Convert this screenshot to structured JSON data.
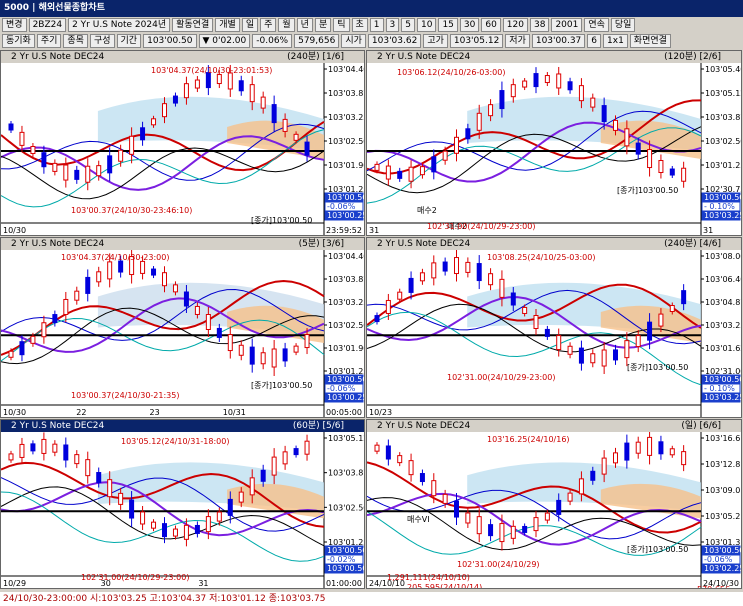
{
  "window": {
    "title": "5000 | 해외선물종합차트"
  },
  "toolbar": {
    "row1": [
      "변경",
      "2BZ24",
      "2 Yr U.S Note 2024년",
      "활동연결",
      "개별",
      "일",
      "주",
      "월",
      "년",
      "분",
      "틱",
      "초",
      "1",
      "3",
      "5",
      "10",
      "15",
      "30",
      "60",
      "120",
      "38",
      "2001",
      "연속",
      "당일"
    ],
    "row2": [
      "동기화",
      "주기",
      "종목",
      "구성",
      "기간",
      "103'00.50",
      "▼ 0'02.00",
      "-0.06%",
      "579,656",
      "시가",
      "103'03.62",
      "고가",
      "103'05.12",
      "저가",
      "103'00.37",
      "6",
      "1x1",
      "화면연결"
    ]
  },
  "panels": [
    {
      "title": "2 Yr U.S Note DEC24",
      "period": "(240분) [1/6]",
      "prices": [
        "103'04.40",
        "103'03.87",
        "103'03.25",
        "103'02.50",
        "103'01.90",
        "103'01.25"
      ],
      "boxes": [
        "103'00.50",
        "-0.06%",
        "103'00.25"
      ],
      "times": [
        "10/30",
        "23:59:52"
      ],
      "annotations": [
        "103'04.37(24/10/30-23:01:53)",
        "103'00.37(24/10/30-23:46:10)",
        "[종가]103'00.50"
      ]
    },
    {
      "title": "2 Yr U.S Note DEC24",
      "period": "(120분) [2/6]",
      "prices": [
        "103'05.40",
        "103'05.12",
        "103'03.87",
        "103'02.50",
        "103'01.25",
        "102'30.75"
      ],
      "boxes": [
        "103'00.50",
        "- 0.10%",
        "103'03.25"
      ],
      "times": [
        "31",
        "31"
      ],
      "annotations": [
        "103'06.12(24/10/26-03:00)",
        "매수2",
        "매수2",
        "102'31.00(24/10/29-23:00)",
        "[종가]103'00.50"
      ]
    },
    {
      "title": "2 Yr U.S Note DEC24",
      "period": "(5분) [3/6]",
      "prices": [
        "103'04.40",
        "103'03.87",
        "103'03.25",
        "103'02.50",
        "103'01.90",
        "103'01.25"
      ],
      "boxes": [
        "103'00.50",
        "-0.06%",
        "103'00.25"
      ],
      "times": [
        "10/30",
        "22",
        "23",
        "10/31",
        "00:05:00"
      ],
      "annotations": [
        "103'04.37(24/10/30-23:00)",
        "103'00.37(24/10/30-21:35)",
        "[종가]103'00.50"
      ]
    },
    {
      "title": "2 Yr U.S Note DEC24",
      "period": "(240분) [4/6]",
      "prices": [
        "103'08.00",
        "103'06.40",
        "103'04.87",
        "103'03.25",
        "103'01.62",
        "102'31.00"
      ],
      "boxes": [
        "103'00.50",
        "- 0.10%",
        "103'03.25"
      ],
      "times": [
        "10/23"
      ],
      "annotations": [
        "103'08.25(24/10/25-03:00)",
        "102'31.00(24/10/29-23:00)",
        "[종가]103'00.50"
      ]
    },
    {
      "title": "2 Yr U.S Note DEC24",
      "period": "(60분) [5/6]",
      "prices": [
        "103'05.12",
        "103'03.87",
        "103'02.50",
        "103'01.25"
      ],
      "boxes": [
        "103'00.50",
        "-0.02%",
        "103'00.50"
      ],
      "times": [
        "10/29",
        "30",
        "31",
        "01:00:00"
      ],
      "annotations": [
        "103'05.12(24/10/31-18:00)",
        "102'31.00(24/10/29-23:00)"
      ]
    },
    {
      "title": "2 Yr U.S Note DEC24",
      "period": "(일) [6/6]",
      "prices": [
        "103'16.6",
        "103'12.8",
        "103'09.0",
        "103'05.2",
        "103'01.3"
      ],
      "boxes": [
        "103'00.50",
        "-0.06%",
        "103'02.25"
      ],
      "times": [
        "24/10/10",
        "24/10/30"
      ],
      "annotations": [
        "103'16.25(24/10/16)",
        "매수VI",
        "102'31.00(24/10/29)",
        "[종가]103'00.50",
        "1,291,111(24/10/10)",
        "205,595(24/10/14)",
        "579,656"
      ]
    }
  ],
  "status": "24/10/30-23:00:00 시:103'03.25 고:103'04.37 저:103'01.12 종:103'03.75"
}
